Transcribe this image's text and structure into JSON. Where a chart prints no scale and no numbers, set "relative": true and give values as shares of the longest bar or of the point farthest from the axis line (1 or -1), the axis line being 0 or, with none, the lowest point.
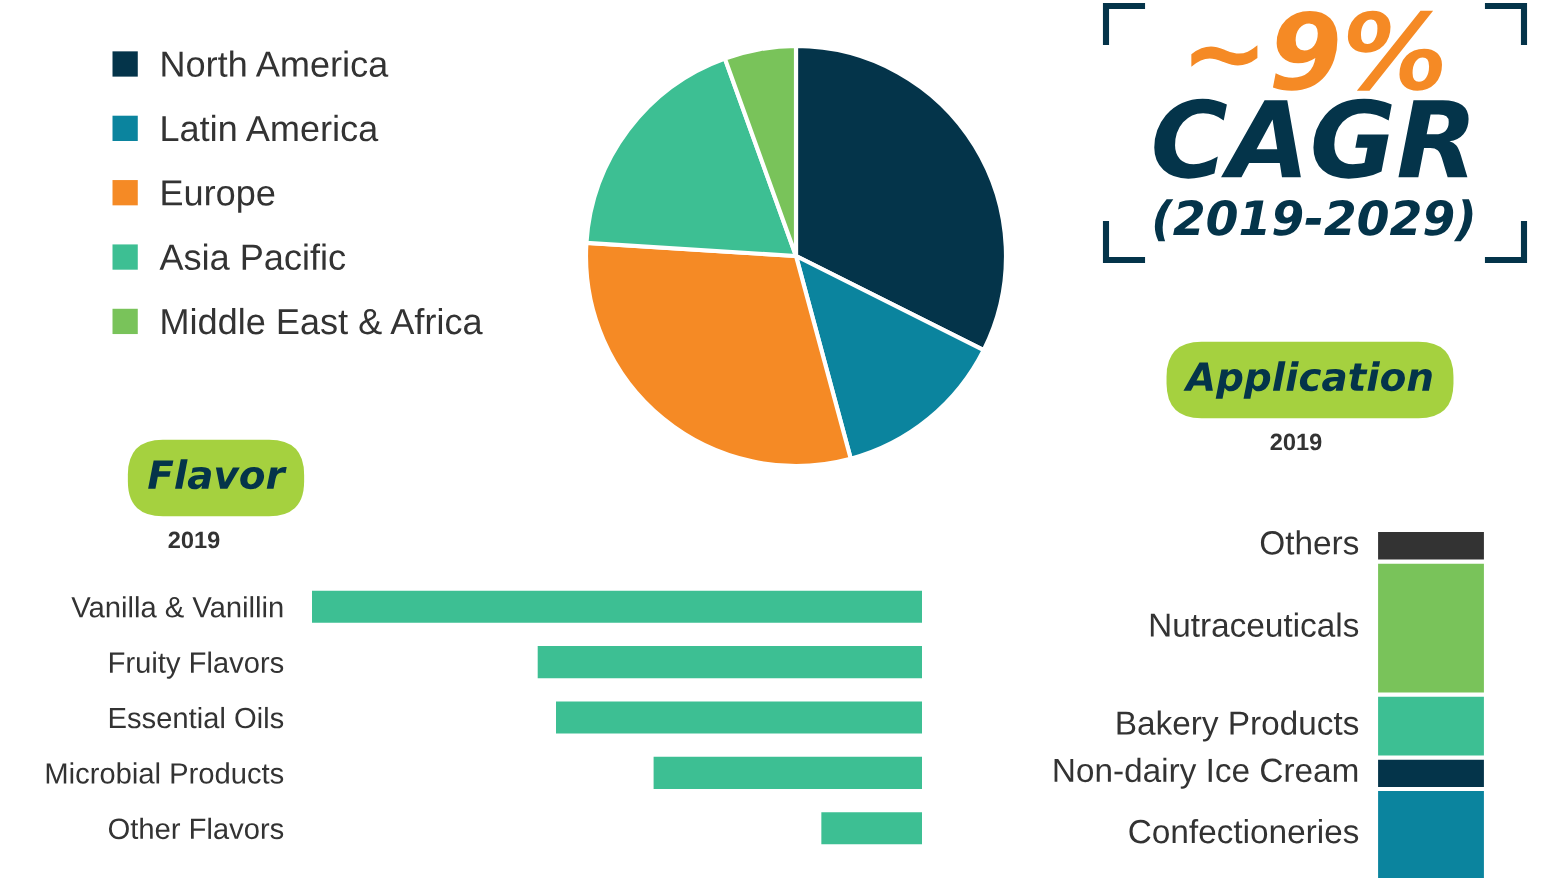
{
  "chart_data": [
    {
      "type": "pie",
      "categories": [
        "North America",
        "Latin America",
        "Europe",
        "Asia Pacific",
        "Middle East & Africa"
      ],
      "values": [
        32.4,
        13.4,
        30.2,
        18.5,
        5.5
      ],
      "colors": [
        "#04344a",
        "#0b849e",
        "#f58a25",
        "#3dbf93",
        "#79c35a"
      ],
      "legend": "left"
    },
    {
      "type": "other",
      "annotations": [
        "~9%",
        "CAGR",
        "(2019-2029)"
      ]
    },
    {
      "type": "bar",
      "orientation": "horizontal",
      "relative": true,
      "title": "Flavor",
      "subtitle": "2019",
      "categories": [
        "Vanilla & Vanillin",
        "Fruity Flavors",
        "Essential Oils",
        "Microbial Products",
        "Other Flavors"
      ],
      "values": [
        1,
        0.63,
        0.6,
        0.44,
        0.165
      ],
      "color": "#3dbf93"
    },
    {
      "type": "bar",
      "stacked": true,
      "relative": true,
      "title": "Application",
      "subtitle": "2019",
      "categories": [
        null
      ],
      "series": [
        {
          "name": "Confectioneries",
          "color": "#0b849e",
          "values": [
            0.26
          ]
        },
        {
          "name": "Non-dairy Ice Cream",
          "color": "#04344a",
          "values": [
            0.09
          ]
        },
        {
          "name": "Bakery Products",
          "color": "#3dbf93",
          "values": [
            0.18
          ]
        },
        {
          "name": "Nutraceuticals",
          "color": "#79c35a",
          "values": [
            0.38
          ]
        },
        {
          "name": "Others",
          "color": "#333333",
          "values": [
            0.09
          ]
        }
      ]
    }
  ]
}
